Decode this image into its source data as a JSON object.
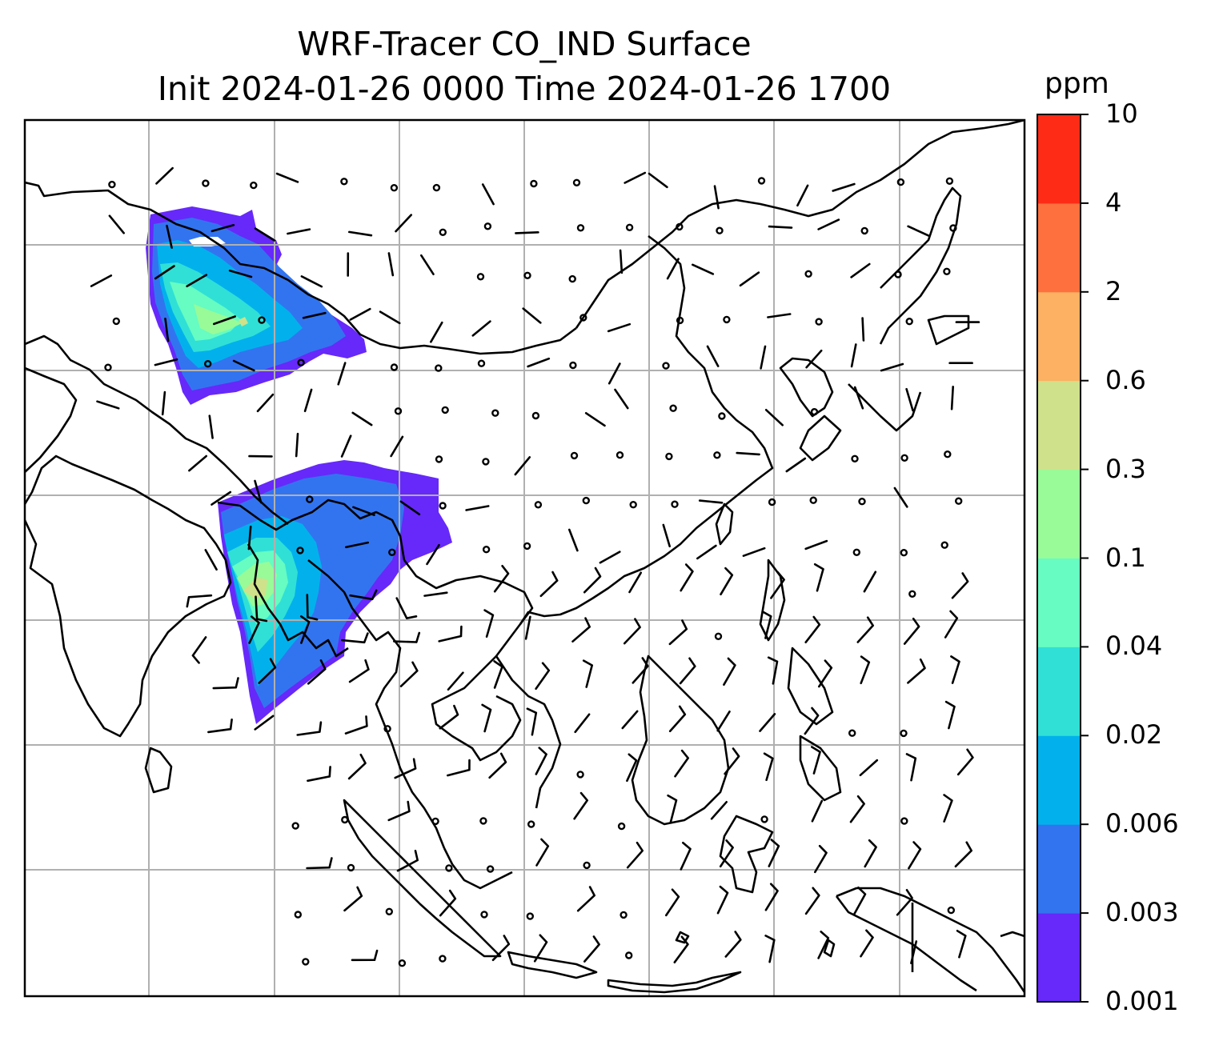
{
  "title": {
    "line1": "WRF-Tracer CO_IND Surface",
    "line2": "Init 2024-01-26 0000 Time 2024-01-26 1700"
  },
  "colorbar": {
    "units": "ppm",
    "levels": [
      "0.001",
      "0.003",
      "0.006",
      "0.02",
      "0.04",
      "0.1",
      "0.3",
      "0.6",
      "2",
      "4",
      "10"
    ],
    "colors": [
      "#6629fa",
      "#3274f0",
      "#02b1ec",
      "#30e0d6",
      "#66fcc2",
      "#98fb98",
      "#cfe18a",
      "#fcb163",
      "#fe713e",
      "#fe2c16"
    ]
  },
  "map": {
    "features": [
      "coastlines",
      "country-borders",
      "lat-lon-gridlines",
      "wind-barbs",
      "tracer-co-plumes"
    ],
    "gridline_color": "#b0b0b0"
  }
}
